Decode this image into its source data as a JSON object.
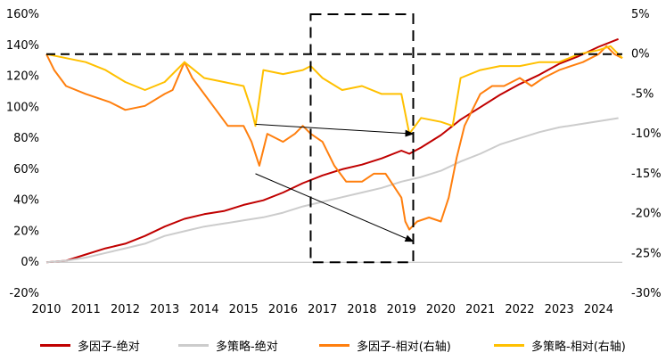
{
  "chart_data": {
    "type": "line",
    "title": "",
    "xlabel": "",
    "ylabel": "",
    "x_ticks": [
      "2010",
      "2011",
      "2012",
      "2013",
      "2014",
      "2015",
      "2016",
      "2017",
      "2018",
      "2019",
      "2020",
      "2021",
      "2022",
      "2023",
      "2024"
    ],
    "x_range": [
      2010.0,
      2024.6
    ],
    "left_axis": {
      "range": [
        -20,
        160
      ],
      "ticks": [
        "-20%",
        "0%",
        "20%",
        "40%",
        "60%",
        "80%",
        "100%",
        "120%",
        "140%",
        "160%"
      ],
      "tick_values": [
        -20,
        0,
        20,
        40,
        60,
        80,
        100,
        120,
        140,
        160
      ]
    },
    "right_axis": {
      "range": [
        -30,
        5
      ],
      "ticks": [
        "-30%",
        "-25%",
        "-20%",
        "-15%",
        "-10%",
        "-5%",
        "0%",
        "5%"
      ],
      "tick_values": [
        -30,
        -25,
        -20,
        -15,
        -10,
        -5,
        0,
        5
      ]
    },
    "series": [
      {
        "name": "多因子-绝对",
        "axis": "left",
        "color": "#c00000",
        "x": [
          2010.0,
          2010.5,
          2011.0,
          2011.5,
          2012.0,
          2012.5,
          2013.0,
          2013.5,
          2014.0,
          2014.5,
          2015.0,
          2015.5,
          2016.0,
          2016.5,
          2017.0,
          2017.5,
          2018.0,
          2018.5,
          2019.0,
          2019.2,
          2019.5,
          2020.0,
          2020.5,
          2021.0,
          2021.5,
          2022.0,
          2022.5,
          2023.0,
          2023.5,
          2024.0,
          2024.5
        ],
        "values": [
          0,
          1,
          5,
          9,
          12,
          17,
          23,
          28,
          31,
          33,
          37,
          40,
          45,
          51,
          56,
          60,
          63,
          67,
          72,
          70,
          74,
          82,
          92,
          100,
          108,
          115,
          121,
          128,
          133,
          139,
          144
        ]
      },
      {
        "name": "多策略-绝对",
        "axis": "left",
        "color": "#cccccc",
        "x": [
          2010.0,
          2010.5,
          2011.0,
          2011.5,
          2012.0,
          2012.5,
          2013.0,
          2013.5,
          2014.0,
          2014.5,
          2015.0,
          2015.5,
          2016.0,
          2016.5,
          2017.0,
          2017.5,
          2018.0,
          2018.5,
          2019.0,
          2019.5,
          2020.0,
          2020.5,
          2021.0,
          2021.5,
          2022.0,
          2022.5,
          2023.0,
          2023.5,
          2024.0,
          2024.5
        ],
        "values": [
          0,
          1,
          3,
          6,
          9,
          12,
          17,
          20,
          23,
          25,
          27,
          29,
          32,
          36,
          39,
          42,
          45,
          48,
          52,
          55,
          59,
          65,
          70,
          76,
          80,
          84,
          87,
          89,
          91,
          93
        ]
      },
      {
        "name": "多因子-相对(右轴)",
        "axis": "right",
        "color": "#ff7f0e",
        "x": [
          2010.0,
          2010.2,
          2010.5,
          2011.0,
          2011.3,
          2011.6,
          2012.0,
          2012.5,
          2013.0,
          2013.2,
          2013.5,
          2013.7,
          2014.0,
          2014.3,
          2014.6,
          2015.0,
          2015.2,
          2015.4,
          2015.6,
          2016.0,
          2016.3,
          2016.5,
          2016.7,
          2017.0,
          2017.3,
          2017.6,
          2018.0,
          2018.3,
          2018.6,
          2019.0,
          2019.1,
          2019.2,
          2019.4,
          2019.7,
          2020.0,
          2020.2,
          2020.4,
          2020.6,
          2021.0,
          2021.3,
          2021.6,
          2022.0,
          2022.3,
          2022.6,
          2023.0,
          2023.3,
          2023.6,
          2024.0,
          2024.2,
          2024.4,
          2024.6
        ],
        "values": [
          0,
          -2,
          -4,
          -5,
          -5.5,
          -6,
          -7,
          -6.5,
          -5,
          -4.5,
          -1,
          -3,
          -5,
          -7,
          -9,
          -9,
          -11,
          -14,
          -10,
          -11,
          -10,
          -9,
          -10,
          -11,
          -14,
          -16,
          -16,
          -15,
          -15,
          -18,
          -21,
          -22,
          -21,
          -20.5,
          -21,
          -18,
          -13,
          -9,
          -5,
          -4,
          -4,
          -3,
          -4,
          -3,
          -2,
          -1.5,
          -1,
          0,
          1,
          0,
          -0.5
        ]
      },
      {
        "name": "多策略-相对(右轴)",
        "axis": "right",
        "color": "#ffc000",
        "x": [
          2010.0,
          2010.5,
          2011.0,
          2011.5,
          2012.0,
          2012.5,
          2013.0,
          2013.5,
          2014.0,
          2014.5,
          2015.0,
          2015.2,
          2015.3,
          2015.5,
          2016.0,
          2016.5,
          2016.7,
          2017.0,
          2017.5,
          2018.0,
          2018.5,
          2019.0,
          2019.2,
          2019.5,
          2020.0,
          2020.3,
          2020.5,
          2021.0,
          2021.5,
          2022.0,
          2022.5,
          2023.0,
          2023.5,
          2024.0,
          2024.3,
          2024.6
        ],
        "values": [
          0,
          -0.5,
          -1,
          -2,
          -3.5,
          -4.5,
          -3.5,
          -1,
          -3,
          -3.5,
          -4,
          -7,
          -9,
          -2,
          -2.5,
          -2,
          -1.5,
          -3,
          -4.5,
          -4,
          -5,
          -5,
          -10,
          -8,
          -8.5,
          -9,
          -3,
          -2,
          -1.5,
          -1.5,
          -1,
          -1,
          0,
          0.5,
          1,
          -0.5
        ]
      }
    ],
    "annotations": {
      "dashed_hline_right_value": 0,
      "dashed_box_x": [
        2016.7,
        2019.3
      ],
      "dashed_box_left_y": [
        160,
        0
      ],
      "arrows": [
        {
          "from_x": 2015.3,
          "from_right_y": -8.8,
          "to_x": 2019.3,
          "to_right_y": -10
        },
        {
          "from_x": 2015.3,
          "from_right_y": -15,
          "to_x": 2019.3,
          "to_right_y": -23.5
        }
      ]
    },
    "legend": [
      "多因子-绝对",
      "多策略-绝对",
      "多因子-相对(右轴)",
      "多策略-相对(右轴)"
    ],
    "legend_position": "bottom",
    "grid": false
  }
}
